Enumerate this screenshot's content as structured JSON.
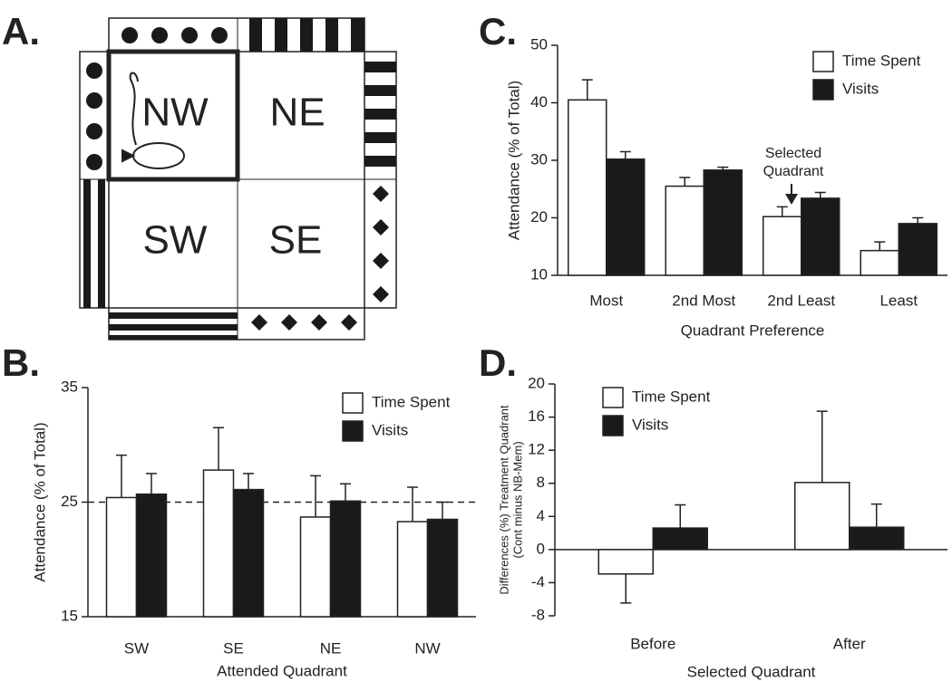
{
  "diagram": {
    "label": "A.",
    "quadrants": [
      "NW",
      "NE",
      "SW",
      "SE"
    ]
  },
  "chart_data": [
    {
      "type": "bar",
      "label": "B.",
      "xlabel": "Attended Quadrant",
      "ylabel": "Attendance (% of Total)",
      "categories": [
        "SW",
        "SE",
        "NE",
        "NW"
      ],
      "series": [
        {
          "name": "Time Spent",
          "color": "#ffffff",
          "values": [
            25.4,
            27.8,
            23.7,
            23.3
          ],
          "errors": [
            3.7,
            3.7,
            3.6,
            3.0
          ]
        },
        {
          "name": "Visits",
          "color": "#1a1a1a",
          "values": [
            25.7,
            26.1,
            25.1,
            23.5
          ],
          "errors": [
            1.8,
            1.4,
            1.5,
            1.5
          ]
        }
      ],
      "ylim": [
        15,
        35
      ],
      "yticks": [
        15,
        25,
        35
      ],
      "reference_line": 25,
      "legend": "upper right"
    },
    {
      "type": "bar",
      "label": "C.",
      "xlabel": "Quadrant Preference",
      "ylabel": "Attendance (% of Total)",
      "categories": [
        "Most",
        "2nd Most",
        "2nd Least",
        "Least"
      ],
      "series": [
        {
          "name": "Time Spent",
          "color": "#ffffff",
          "values": [
            40.5,
            25.5,
            20.2,
            14.3
          ],
          "errors": [
            3.5,
            1.5,
            1.7,
            1.5
          ]
        },
        {
          "name": "Visits",
          "color": "#1a1a1a",
          "values": [
            30.2,
            28.3,
            23.4,
            19.0
          ],
          "errors": [
            1.3,
            0.5,
            1.0,
            1.0
          ]
        }
      ],
      "ylim": [
        10,
        50
      ],
      "yticks": [
        10,
        20,
        30,
        40,
        50
      ],
      "legend": "upper right",
      "annotation": [
        "Selected",
        "Quadrant"
      ]
    },
    {
      "type": "bar",
      "label": "D.",
      "xlabel": "Selected Quadrant",
      "ylabel": [
        "Differences (%) Treatment Quadrant",
        "(Cont minus NB-Mem)"
      ],
      "categories": [
        "Before",
        "After"
      ],
      "series": [
        {
          "name": "Time Spent",
          "color": "#ffffff",
          "values": [
            -2.95,
            8.1
          ],
          "errors": [
            3.5,
            8.6
          ]
        },
        {
          "name": "Visits",
          "color": "#1a1a1a",
          "values": [
            2.6,
            2.7
          ],
          "errors": [
            2.8,
            2.8
          ]
        }
      ],
      "ylim": [
        -8,
        20
      ],
      "yticks": [
        -8,
        -4,
        0,
        4,
        8,
        12,
        16,
        20
      ],
      "legend": "upper left"
    }
  ]
}
